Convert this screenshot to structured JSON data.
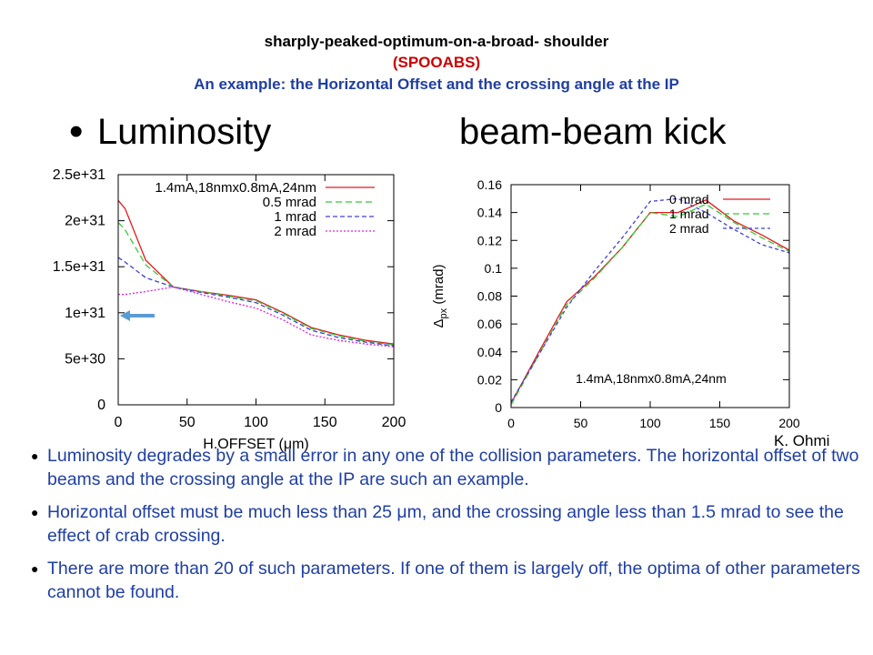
{
  "header": {
    "title": "sharply-peaked-optimum-on-a-broad- shoulder",
    "acronym": "(SPOOABS)",
    "subtitle": "An example: the Horizontal Offset and the crossing angle at the IP"
  },
  "headings": {
    "bullet_glyph": "•",
    "left": "Luminosity",
    "right": "beam-beam kick"
  },
  "credit": "K. Ohmi",
  "arrow_color": "#5b9bd5",
  "chart_data": [
    {
      "type": "line",
      "xlabel": "H.OFFSET (μm)",
      "ylabel": "",
      "xlim": [
        0,
        200
      ],
      "ylim": [
        0,
        2.5e+31
      ],
      "xticks": [
        0,
        50,
        100,
        150,
        200
      ],
      "xtick_labels": [
        "0",
        "50",
        "100",
        "150",
        "200"
      ],
      "yticks": [
        0,
        5e+30,
        1e+31,
        1.5e+31,
        2e+31,
        2.5e+31
      ],
      "ytick_labels": [
        "0",
        "5e+30",
        "1e+31",
        "1.5e+31",
        "2e+31",
        "2.5e+31"
      ],
      "legend_position": "top-right",
      "annotation": "",
      "series": [
        {
          "name": "1.4mA,18nmx0.8mA,24nm",
          "color": "#e41a1c",
          "dash": "",
          "x": [
            0,
            5,
            20,
            40,
            60,
            80,
            100,
            120,
            140,
            160,
            180,
            200
          ],
          "y": [
            2.22e+31,
            2.13e+31,
            1.57e+31,
            1.28e+31,
            1.23e+31,
            1.19e+31,
            1.14e+31,
            1e+31,
            8.4e+30,
            7.6e+30,
            7e+30,
            6.6e+30
          ]
        },
        {
          "name": "0.5 mrad",
          "color": "#33cc33",
          "dash": "7,4",
          "x": [
            0,
            5,
            20,
            40,
            60,
            80,
            100,
            120,
            140,
            160,
            180,
            200
          ],
          "y": [
            1.98e+31,
            1.9e+31,
            1.52e+31,
            1.28e+31,
            1.23e+31,
            1.18e+31,
            1.13e+31,
            9.9e+30,
            8.3e+30,
            7.5e+30,
            6.9e+30,
            6.5e+30
          ]
        },
        {
          "name": "1 mrad",
          "color": "#4040e0",
          "dash": "5,3",
          "x": [
            0,
            5,
            20,
            40,
            60,
            80,
            100,
            120,
            140,
            160,
            180,
            200
          ],
          "y": [
            1.6e+31,
            1.55e+31,
            1.38e+31,
            1.28e+31,
            1.22e+31,
            1.17e+31,
            1.11e+31,
            9.7e+30,
            8.1e+30,
            7.3e+30,
            6.8e+30,
            6.4e+30
          ]
        },
        {
          "name": "2 mrad",
          "color": "#e020e0",
          "dash": "2,2",
          "x": [
            0,
            5,
            20,
            40,
            60,
            80,
            100,
            120,
            140,
            160,
            180,
            200
          ],
          "y": [
            1.2e+31,
            1.2e+31,
            1.23e+31,
            1.28e+31,
            1.2e+31,
            1.12e+31,
            1.05e+31,
            9.2e+30,
            7.6e+30,
            7e+30,
            6.6e+30,
            6.3e+30
          ]
        }
      ]
    },
    {
      "type": "line",
      "xlabel": "",
      "ylabel_main": "Δ",
      "ylabel_sub": "px",
      "ylabel_unit": " (mrad)",
      "xlim": [
        0,
        200
      ],
      "ylim": [
        0,
        0.16
      ],
      "xticks": [
        0,
        50,
        100,
        150,
        200
      ],
      "xtick_labels": [
        "0",
        "50",
        "100",
        "150",
        "200"
      ],
      "yticks": [
        0,
        0.02,
        0.04,
        0.06,
        0.08,
        0.1,
        0.12,
        0.14,
        0.16
      ],
      "ytick_labels": [
        "0",
        "0.02",
        "0.04",
        "0.06",
        "0.08",
        "0.1",
        "0.12",
        "0.14",
        "0.16"
      ],
      "legend_position": "top-right",
      "annotation": "1.4mA,18nmx0.8mA,24nm",
      "series": [
        {
          "name": "0 mrad",
          "color": "#e41a1c",
          "dash": "",
          "x": [
            0,
            20,
            40,
            60,
            80,
            100,
            120,
            140,
            160,
            180,
            200
          ],
          "y": [
            0.003,
            0.04,
            0.076,
            0.094,
            0.115,
            0.14,
            0.14,
            0.149,
            0.134,
            0.124,
            0.113
          ]
        },
        {
          "name": "1 mrad",
          "color": "#33cc33",
          "dash": "7,4",
          "x": [
            0,
            20,
            40,
            60,
            80,
            100,
            120,
            140,
            160,
            180,
            200
          ],
          "y": [
            0.002,
            0.038,
            0.074,
            0.093,
            0.115,
            0.14,
            0.137,
            0.146,
            0.133,
            0.122,
            0.112
          ]
        },
        {
          "name": "2 mrad",
          "color": "#4040e0",
          "dash": "4,3",
          "x": [
            0,
            20,
            40,
            60,
            80,
            100,
            120,
            140,
            160,
            180,
            200
          ],
          "y": [
            0.004,
            0.038,
            0.072,
            0.098,
            0.122,
            0.148,
            0.15,
            0.14,
            0.128,
            0.117,
            0.111
          ]
        }
      ]
    }
  ],
  "bullets": [
    "Luminosity degrades by a small error in any one of the collision parameters. The horizontal offset of two beams and the crossing angle at the IP are such an example.",
    "Horizontal offset must be much less than 25 μm, and the crossing angle less than 1.5 mrad to see the effect of crab crossing.",
    "There are more than 20 of such parameters. If one of them is largely off, the optima of other parameters cannot be found."
  ]
}
